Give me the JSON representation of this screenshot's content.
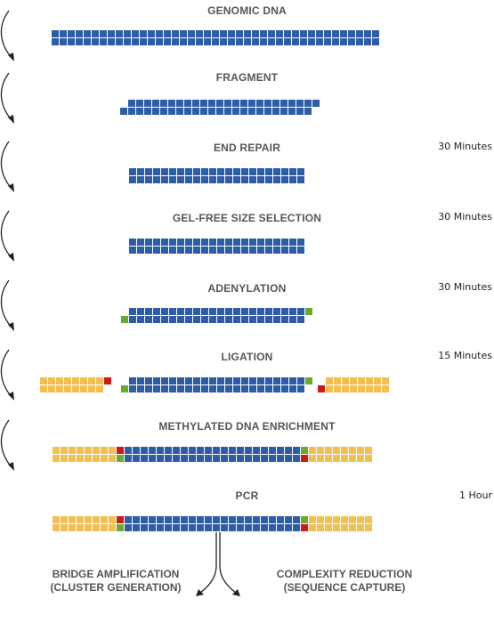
{
  "colors": {
    "blue": "#2e5da8",
    "yellow": "#f2bf50",
    "red": "#cc1a1a",
    "green": "#6aab2e",
    "label": "#555555",
    "arrow": "#222222"
  },
  "icons": {
    "step_arrow": "curved-down-arrow-icon",
    "split_arrow": "branching-arrow-icon"
  },
  "steps": [
    {
      "label": "GENOMIC DNA",
      "duration": ""
    },
    {
      "label": "FRAGMENT",
      "duration": ""
    },
    {
      "label": "END REPAIR",
      "duration": "30 Minutes"
    },
    {
      "label": "GEL-FREE SIZE SELECTION",
      "duration": "30 Minutes"
    },
    {
      "label": "ADENYLATION",
      "duration": "30 Minutes"
    },
    {
      "label": "LIGATION",
      "duration": "15 Minutes"
    },
    {
      "label": "METHYLATED DNA ENRICHMENT",
      "duration": ""
    },
    {
      "label": "PCR",
      "duration": "1 Hour"
    }
  ],
  "outcomes": {
    "left": {
      "line1": "BRIDGE AMPLIFICATION",
      "line2": "(CLUSTER GENERATION)"
    },
    "right": {
      "line1": "COMPLEXITY REDUCTION",
      "line2": "(SEQUENCE CAPTURE)"
    }
  }
}
